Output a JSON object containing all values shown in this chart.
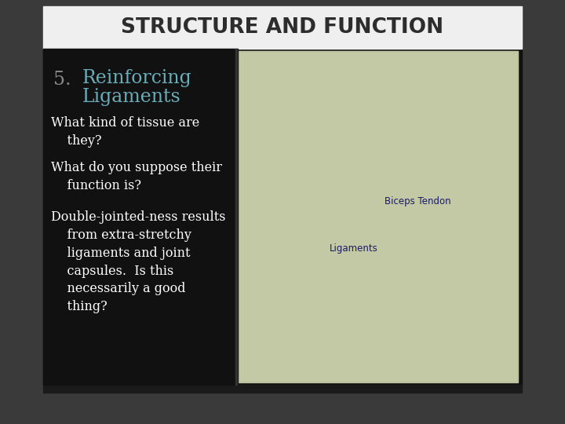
{
  "title": "STRUCTURE AND FUNCTION",
  "title_color": "#2d2d2d",
  "title_bg": "#efefef",
  "slide_bg": "#111111",
  "outer_bg": "#3a3a3a",
  "number": "5.",
  "number_color": "#888888",
  "heading_line1": "Reinforcing",
  "heading_line2": "Ligaments",
  "heading_color": "#6aacb8",
  "bullets": [
    "What kind of tissue are\n    they?",
    "What do you suppose their\n    function is?",
    "Double-jointed-ness results\n    from extra-stretchy\n    ligaments and joint\n    capsules.  Is this\n    necessarily a good\n    thing?"
  ],
  "bullet_color": "#ffffff",
  "title_fontsize": 19,
  "heading_fontsize": 17,
  "bullet_fontsize": 11.5,
  "number_fontsize": 17,
  "img_label1": "Biceps Tendon",
  "img_label2": "Ligaments",
  "img_label_color": "#1a1a6a"
}
